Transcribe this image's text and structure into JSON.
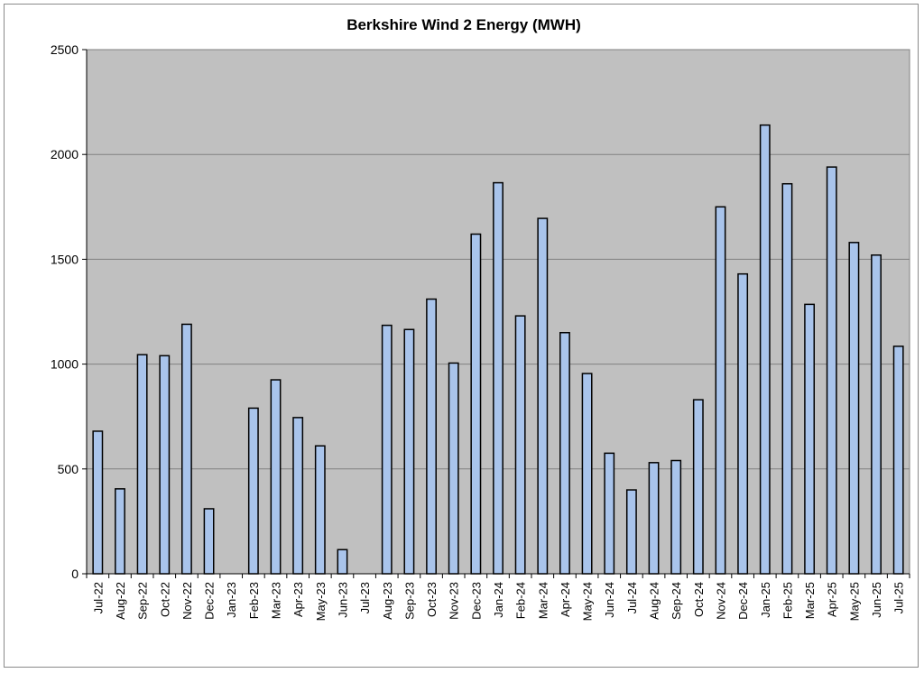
{
  "chart_data": {
    "type": "bar",
    "title": "Berkshire Wind 2 Energy (MWH)",
    "xlabel": "",
    "ylabel": "",
    "ylim": [
      0,
      2500
    ],
    "yticks": [
      0,
      500,
      1000,
      1500,
      2000,
      2500
    ],
    "grid": true,
    "categories": [
      "Jul-22",
      "Aug-22",
      "Sep-22",
      "Oct-22",
      "Nov-22",
      "Dec-22",
      "Jan-23",
      "Feb-23",
      "Mar-23",
      "Apr-23",
      "May-23",
      "Jun-23",
      "Jul-23",
      "Aug-23",
      "Sep-23",
      "Oct-23",
      "Nov-23",
      "Dec-23",
      "Jan-24",
      "Feb-24",
      "Mar-24",
      "Apr-24",
      "May-24",
      "Jun-24",
      "Jul-24",
      "Aug-24",
      "Sep-24",
      "Oct-24",
      "Nov-24",
      "Dec-24",
      "Jan-25",
      "Feb-25",
      "Mar-25",
      "Apr-25",
      "May-25",
      "Jun-25",
      "Jul-25"
    ],
    "values": [
      680,
      405,
      1045,
      1040,
      1190,
      310,
      0,
      790,
      925,
      745,
      610,
      115,
      0,
      1185,
      1165,
      1310,
      1005,
      1620,
      1865,
      1230,
      1695,
      1150,
      955,
      575,
      400,
      530,
      540,
      830,
      1750,
      1430,
      2140,
      1860,
      1285,
      1940,
      1580,
      1520,
      1085
    ],
    "colors": {
      "bar": "#a9c4eb",
      "bar_stroke": "#000000",
      "plot_bg": "#c0c0c0",
      "grid": "#808080"
    }
  }
}
